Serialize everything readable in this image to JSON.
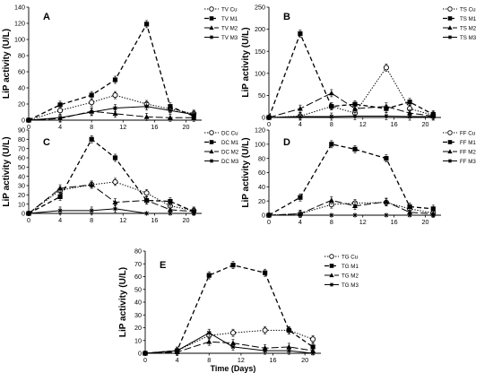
{
  "chart_data": [
    {
      "type": "line",
      "panel_label": "A",
      "ylabel": "LiP activity (U/L)",
      "xlabel": "",
      "xlim": [
        0,
        22
      ],
      "ylim": [
        0,
        140
      ],
      "xticks": [
        0,
        4,
        8,
        12,
        16,
        20
      ],
      "yticks": [
        0,
        20,
        40,
        60,
        80,
        100,
        120,
        140
      ],
      "legend_position": "top-right",
      "series": [
        {
          "name": "TV Cu",
          "x": [
            0,
            4,
            8,
            11,
            15,
            18,
            21
          ],
          "y": [
            0,
            12,
            22,
            31,
            20,
            14,
            8
          ]
        },
        {
          "name": "TV M1",
          "x": [
            0,
            4,
            8,
            11,
            15,
            18,
            21
          ],
          "y": [
            0,
            19,
            31,
            50,
            119,
            17,
            5
          ]
        },
        {
          "name": "TV M2",
          "x": [
            0,
            4,
            8,
            11,
            15,
            18,
            21
          ],
          "y": [
            0,
            2,
            11,
            8,
            4,
            3,
            3
          ]
        },
        {
          "name": "TV M3",
          "x": [
            0,
            4,
            8,
            11,
            15,
            18,
            21
          ],
          "y": [
            0,
            3,
            10,
            15,
            17,
            12,
            7
          ]
        }
      ]
    },
    {
      "type": "line",
      "panel_label": "B",
      "ylabel": "LiP activity (U/L)",
      "xlabel": "",
      "xlim": [
        0,
        22
      ],
      "ylim": [
        0,
        250
      ],
      "xticks": [
        0,
        4,
        8,
        12,
        16,
        20
      ],
      "yticks": [
        0,
        50,
        100,
        150,
        200,
        250
      ],
      "legend_position": "top-right",
      "series": [
        {
          "name": "TS Cu",
          "x": [
            0,
            4,
            8,
            11,
            15,
            18,
            21
          ],
          "y": [
            0,
            3,
            25,
            10,
            113,
            20,
            5
          ]
        },
        {
          "name": "TS M1",
          "x": [
            0,
            4,
            8,
            11,
            15,
            18,
            21
          ],
          "y": [
            0,
            190,
            25,
            30,
            20,
            35,
            7
          ]
        },
        {
          "name": "TS M2",
          "x": [
            0,
            4,
            8,
            11,
            15,
            18,
            21
          ],
          "y": [
            0,
            20,
            55,
            20,
            25,
            10,
            3
          ]
        },
        {
          "name": "TS M3",
          "x": [
            0,
            4,
            8,
            11,
            15,
            18,
            21
          ],
          "y": [
            0,
            2,
            2,
            3,
            3,
            2,
            2
          ]
        }
      ]
    },
    {
      "type": "line",
      "panel_label": "C",
      "ylabel": "LiP activity (U/L)",
      "xlabel": "",
      "xlim": [
        0,
        22
      ],
      "ylim": [
        0,
        90
      ],
      "xticks": [
        0,
        4,
        8,
        12,
        16,
        20
      ],
      "yticks": [
        0,
        10,
        20,
        30,
        40,
        50,
        60,
        70,
        80,
        90
      ],
      "legend_position": "top-right",
      "series": [
        {
          "name": "DC Cu",
          "x": [
            0,
            4,
            8,
            11,
            15,
            18,
            21
          ],
          "y": [
            0,
            25,
            31,
            34,
            22,
            8,
            3
          ]
        },
        {
          "name": "DC M1",
          "x": [
            0,
            4,
            8,
            11,
            15,
            18,
            21
          ],
          "y": [
            0,
            18,
            80,
            60,
            14,
            13,
            2
          ]
        },
        {
          "name": "DC M2",
          "x": [
            0,
            4,
            8,
            11,
            15,
            18,
            21
          ],
          "y": [
            0,
            27,
            31,
            12,
            14,
            4,
            2
          ]
        },
        {
          "name": "DC M3",
          "x": [
            0,
            4,
            8,
            11,
            15,
            18,
            21
          ],
          "y": [
            0,
            3,
            3,
            5,
            0,
            0,
            0
          ]
        }
      ]
    },
    {
      "type": "line",
      "panel_label": "D",
      "ylabel": "LiP activity (U/L)",
      "xlabel": "",
      "xlim": [
        0,
        22
      ],
      "ylim": [
        0,
        120
      ],
      "xticks": [
        0,
        4,
        8,
        12,
        16,
        20
      ],
      "yticks": [
        0,
        20,
        40,
        60,
        80,
        100,
        120
      ],
      "legend_position": "top-right",
      "series": [
        {
          "name": "FF Cu",
          "x": [
            0,
            4,
            8,
            11,
            15,
            18,
            21
          ],
          "y": [
            0,
            2,
            15,
            17,
            18,
            9,
            3
          ]
        },
        {
          "name": "FF M1",
          "x": [
            0,
            4,
            8,
            11,
            15,
            18,
            21
          ],
          "y": [
            0,
            25,
            100,
            93,
            80,
            12,
            9
          ]
        },
        {
          "name": "FF M2",
          "x": [
            0,
            4,
            8,
            11,
            15,
            18,
            21
          ],
          "y": [
            0,
            2,
            21,
            13,
            19,
            4,
            2
          ]
        },
        {
          "name": "FF M3",
          "x": [
            0,
            4,
            8,
            11,
            15,
            18,
            21
          ],
          "y": [
            0,
            0,
            0,
            0,
            0,
            0,
            0
          ]
        }
      ]
    },
    {
      "type": "line",
      "panel_label": "E",
      "ylabel": "LiP activity (U/L)",
      "xlabel": "Time (Days)",
      "xlim": [
        0,
        22
      ],
      "ylim": [
        0,
        80
      ],
      "xticks": [
        0,
        4,
        8,
        12,
        16,
        20
      ],
      "yticks": [
        0,
        10,
        20,
        30,
        40,
        50,
        60,
        70,
        80
      ],
      "legend_position": "top-right",
      "series": [
        {
          "name": "TG Cu",
          "x": [
            0,
            4,
            8,
            11,
            15,
            18,
            21
          ],
          "y": [
            0,
            2,
            14,
            16,
            18,
            18,
            11
          ]
        },
        {
          "name": "TG M1",
          "x": [
            0,
            4,
            8,
            11,
            15,
            18,
            21
          ],
          "y": [
            0,
            2,
            61,
            69,
            63,
            18,
            5
          ]
        },
        {
          "name": "TG M2",
          "x": [
            0,
            4,
            8,
            11,
            15,
            18,
            21
          ],
          "y": [
            0,
            1,
            9,
            8,
            4,
            5,
            2
          ]
        },
        {
          "name": "TG M3",
          "x": [
            0,
            4,
            8,
            11,
            15,
            18,
            21
          ],
          "y": [
            0,
            2,
            16,
            5,
            2,
            2,
            0
          ]
        }
      ]
    }
  ],
  "style": {
    "line_color": "#000000",
    "series_styles": [
      {
        "dash": "dotted",
        "marker": "open-circle"
      },
      {
        "dash": "dashed",
        "marker": "filled-square"
      },
      {
        "dash": "long-dash",
        "marker": "filled-triangle"
      },
      {
        "dash": "solid",
        "marker": "star"
      }
    ]
  }
}
